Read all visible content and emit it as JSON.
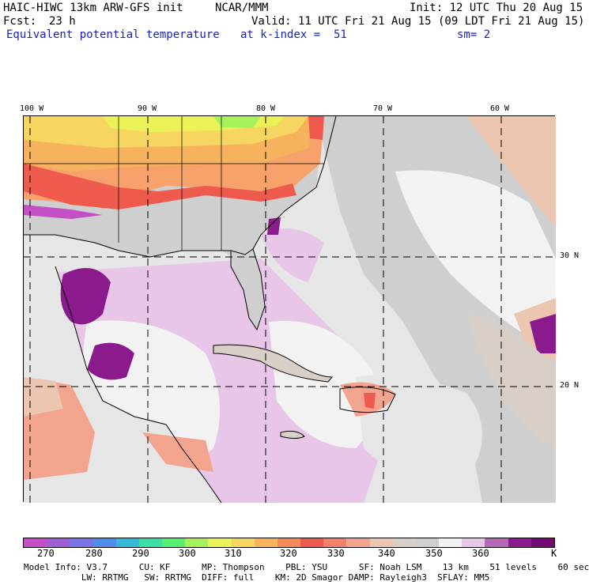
{
  "header": {
    "model_title": "HAIC-HIWC 13km ARW-GFS init",
    "org": "NCAR/MMM",
    "init": "Init: 12 UTC Thu 20 Aug 15",
    "fcst_label": "Fcst:",
    "fcst_value": "23 h",
    "valid": "Valid: 11 UTC Fri 21 Aug 15 (09 LDT Fri 21 Aug 15)",
    "field_name": "Equivalent potential temperature",
    "level": "at k-index =  51",
    "smoothing": "sm= 2"
  },
  "map": {
    "lon_labels": [
      "100 W",
      "90 W",
      "80 W",
      "70 W",
      "60 W"
    ],
    "lat_labels": [
      "30 N",
      "20 N"
    ]
  },
  "colorbar": {
    "colors": [
      "#c44fc6",
      "#a060d4",
      "#7a74e6",
      "#4f8ee8",
      "#35b9d6",
      "#3ae0a6",
      "#55ef72",
      "#a6f25a",
      "#eaf257",
      "#f6d561",
      "#f7b25e",
      "#f68b5a",
      "#ef5a4e",
      "#f2806a",
      "#f3a48e",
      "#ecc6b0",
      "#d9cfc9",
      "#cfcfcf",
      "#f2f2f2",
      "#e7c6e7",
      "#b569b8",
      "#8b1a8c",
      "#740a74"
    ],
    "labels": [
      "270",
      "280",
      "290",
      "300",
      "310",
      "320",
      "330",
      "340",
      "350",
      "360"
    ],
    "unit": "K"
  },
  "model_info": {
    "line1": "Model Info: V3.7      CU: KF      MP: Thompson    PBL: YSU      SF: Noah LSM    13 km    51 levels    60 sec",
    "line2": "           LW: RRTMG   SW: RRTMG  DIFF: full    KM: 2D Smagor DAMP: Rayleigh3  SFLAY: MM5"
  }
}
